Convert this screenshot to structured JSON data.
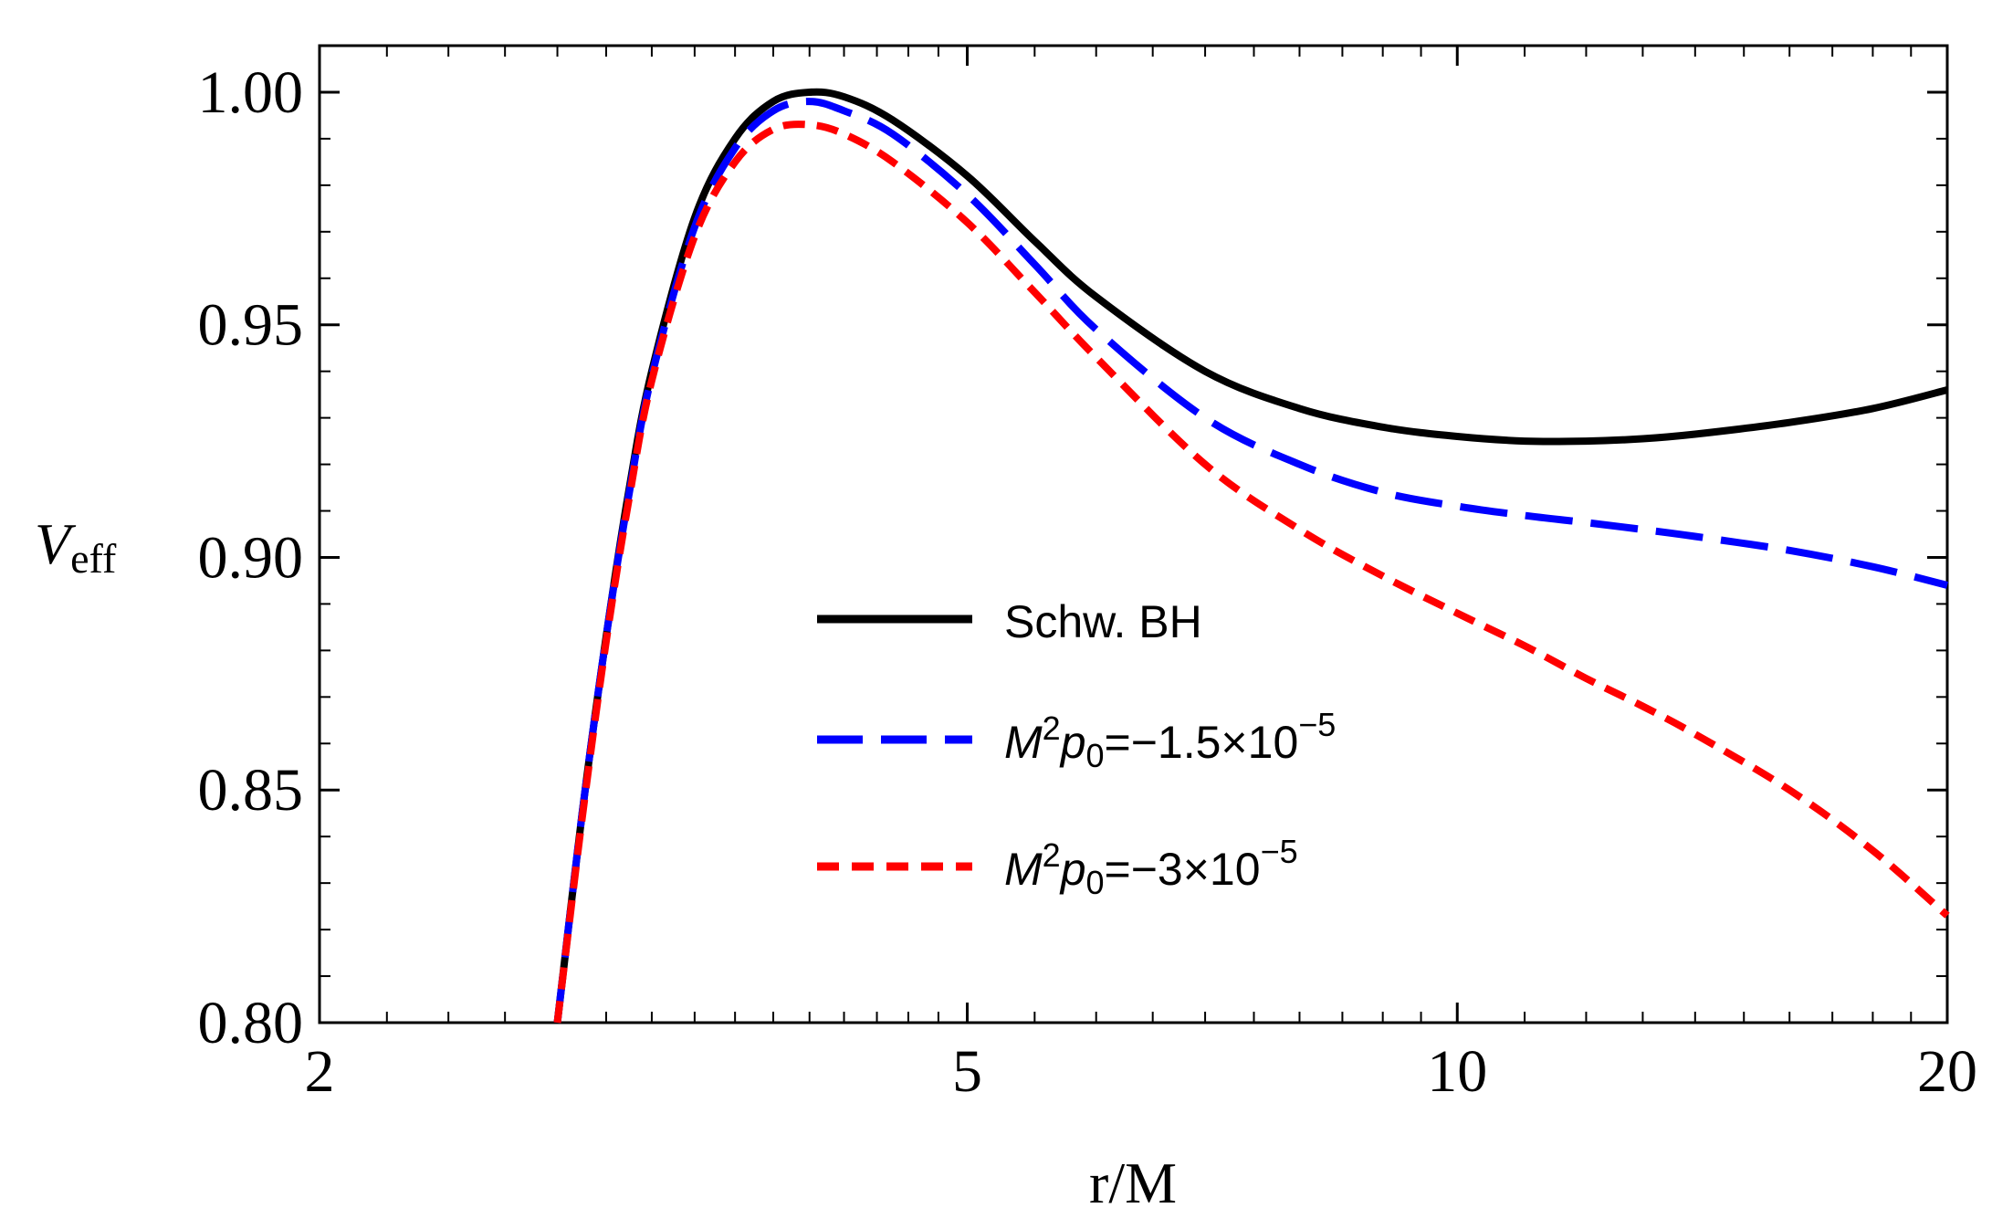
{
  "chart_data": {
    "type": "line",
    "xscale": "log",
    "xlim": [
      2,
      20
    ],
    "ylim": [
      0.8,
      1.01
    ],
    "xlabel": "r/M",
    "ylabel": {
      "main": "V",
      "sub": "eff"
    },
    "xticks": [
      {
        "value": 2,
        "label": "2"
      },
      {
        "value": 5,
        "label": "5"
      },
      {
        "value": 10,
        "label": "10"
      },
      {
        "value": 20,
        "label": "20"
      }
    ],
    "yticks": [
      {
        "value": 0.8,
        "label": "0.80"
      },
      {
        "value": 0.85,
        "label": "0.85"
      },
      {
        "value": 0.9,
        "label": "0.90"
      },
      {
        "value": 0.95,
        "label": "0.95"
      },
      {
        "value": 1.0,
        "label": "1.00"
      }
    ],
    "legend_position": "center-right",
    "legend": [
      {
        "id": "schw",
        "label": "Schw. BH"
      },
      {
        "id": "p15",
        "label_main": "M",
        "label_sup1": "2",
        "label_p": "p",
        "label_sub": "0",
        "label_rest": "=−1.5×10",
        "label_exp": "−5"
      },
      {
        "id": "p3",
        "label_main": "M",
        "label_sup1": "2",
        "label_p": "p",
        "label_sub": "0",
        "label_rest": "=−3×10",
        "label_exp": "−5"
      }
    ],
    "series": [
      {
        "id": "schw",
        "name": "Schw. BH",
        "color": "#000000",
        "style": "solid",
        "x": [
          2.8,
          2.9,
          3.0,
          3.1,
          3.2,
          3.4,
          3.6,
          3.8,
          4.0,
          4.2,
          4.5,
          5.0,
          5.5,
          6.0,
          7.0,
          8.0,
          9.0,
          10.0,
          11.0,
          12.0,
          13.0,
          14.0,
          16.0,
          18.0,
          20.0
        ],
        "y": [
          0.8,
          0.845,
          0.883,
          0.915,
          0.94,
          0.973,
          0.99,
          0.998,
          1.0,
          0.999,
          0.994,
          0.982,
          0.968,
          0.956,
          0.94,
          0.932,
          0.928,
          0.926,
          0.925,
          0.925,
          0.9255,
          0.9265,
          0.929,
          0.932,
          0.936
        ]
      },
      {
        "id": "p15",
        "name": "M^2 p_0 = -1.5x10^-5",
        "color": "#0000ff",
        "style": "longdash",
        "x": [
          2.8,
          2.9,
          3.0,
          3.1,
          3.2,
          3.4,
          3.6,
          3.8,
          4.0,
          4.2,
          4.5,
          5.0,
          5.5,
          6.0,
          7.0,
          8.0,
          9.0,
          10.0,
          11.0,
          12.0,
          13.0,
          14.0,
          16.0,
          18.0,
          20.0
        ],
        "y": [
          0.8,
          0.845,
          0.883,
          0.914,
          0.939,
          0.971,
          0.988,
          0.996,
          0.998,
          0.996,
          0.991,
          0.978,
          0.963,
          0.949,
          0.93,
          0.92,
          0.914,
          0.911,
          0.909,
          0.9075,
          0.906,
          0.9045,
          0.9015,
          0.898,
          0.894
        ]
      },
      {
        "id": "p3",
        "name": "M^2 p_0 = -3x10^-5",
        "color": "#ff0000",
        "style": "shortdash",
        "x": [
          2.8,
          2.9,
          3.0,
          3.1,
          3.2,
          3.4,
          3.6,
          3.8,
          4.0,
          4.2,
          4.5,
          5.0,
          5.5,
          6.0,
          7.0,
          8.0,
          9.0,
          10.0,
          11.0,
          12.0,
          13.0,
          14.0,
          16.0,
          18.0,
          20.0
        ],
        "y": [
          0.8,
          0.844,
          0.882,
          0.913,
          0.938,
          0.969,
          0.985,
          0.992,
          0.993,
          0.991,
          0.985,
          0.972,
          0.957,
          0.943,
          0.92,
          0.906,
          0.896,
          0.888,
          0.881,
          0.874,
          0.868,
          0.862,
          0.85,
          0.837,
          0.823
        ]
      }
    ]
  }
}
